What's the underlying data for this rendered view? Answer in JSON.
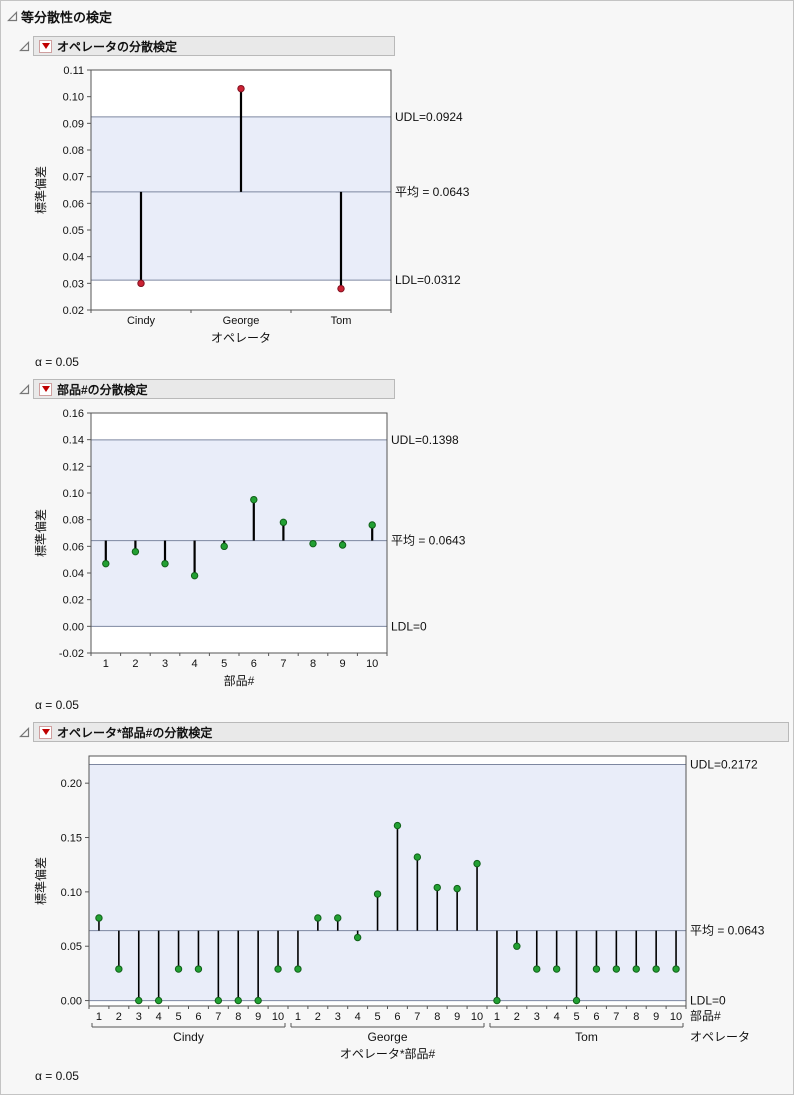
{
  "page": {
    "title": "等分散性の検定"
  },
  "sections": [
    {
      "title": "オペレータの分散検定",
      "alpha": "α = 0.05"
    },
    {
      "title": "部品#の分散検定",
      "alpha": "α = 0.05"
    },
    {
      "title": "オペレータ*部品#の分散検定",
      "alpha": "α = 0.05"
    }
  ],
  "chart_data": [
    {
      "type": "needle",
      "title": "オペレータの分散検定",
      "ylabel": "標準偏差",
      "xlabel": "オペレータ",
      "categories": [
        "Cindy",
        "George",
        "Tom"
      ],
      "values": [
        0.03,
        0.103,
        0.028
      ],
      "mean": 0.0643,
      "udl": 0.0924,
      "ldl": 0.0312,
      "labels": {
        "udl": "UDL=0.0924",
        "mean": "平均 = 0.0643",
        "ldl": "LDL=0.0312"
      },
      "ylim": [
        0.02,
        0.11
      ],
      "ytick_step": 0.01,
      "ydecimals": 2,
      "grid": false,
      "legend": "none",
      "band_color": "#e9edf9",
      "limit_line_color": "#7d87a0",
      "point_color": "#cc2233",
      "point_edge": "#801020"
    },
    {
      "type": "needle",
      "title": "部品#の分散検定",
      "ylabel": "標準偏差",
      "xlabel": "部品#",
      "categories": [
        "1",
        "2",
        "3",
        "4",
        "5",
        "6",
        "7",
        "8",
        "9",
        "10"
      ],
      "values": [
        0.047,
        0.056,
        0.047,
        0.038,
        0.06,
        0.095,
        0.078,
        0.062,
        0.061,
        0.076
      ],
      "mean": 0.0643,
      "udl": 0.1398,
      "ldl": 0,
      "labels": {
        "udl": "UDL=0.1398",
        "mean": "平均 = 0.0643",
        "ldl": "LDL=0"
      },
      "ylim": [
        -0.02,
        0.16
      ],
      "ytick_step": 0.02,
      "ydecimals": 2,
      "grid": false,
      "legend": "none",
      "band_color": "#e9edf9",
      "limit_line_color": "#7d87a0",
      "point_color": "#22a033",
      "point_edge": "#106018"
    },
    {
      "type": "needle",
      "title": "オペレータ*部品#の分散検定",
      "ylabel": "標準偏差",
      "xlabel": "オペレータ*部品#",
      "categories": [
        "1",
        "2",
        "3",
        "4",
        "5",
        "6",
        "7",
        "8",
        "9",
        "10",
        "1",
        "2",
        "3",
        "4",
        "5",
        "6",
        "7",
        "8",
        "9",
        "10",
        "1",
        "2",
        "3",
        "4",
        "5",
        "6",
        "7",
        "8",
        "9",
        "10"
      ],
      "groups": [
        {
          "label": "Cindy",
          "span": 10
        },
        {
          "label": "George",
          "span": 10
        },
        {
          "label": "Tom",
          "span": 10
        }
      ],
      "right_labels": [
        "部品#",
        "オペレータ"
      ],
      "values": [
        0.076,
        0.029,
        0.0,
        0.0,
        0.029,
        0.029,
        0.0,
        0.0,
        0.0,
        0.029,
        0.029,
        0.076,
        0.076,
        0.058,
        0.098,
        0.161,
        0.132,
        0.104,
        0.103,
        0.126,
        0.0,
        0.05,
        0.029,
        0.029,
        0.0,
        0.029,
        0.029,
        0.029,
        0.029,
        0.029
      ],
      "mean": 0.0643,
      "udl": 0.2172,
      "ldl": 0,
      "labels": {
        "udl": "UDL=0.2172",
        "mean": "平均 = 0.0643",
        "ldl": "LDL=0"
      },
      "ylim": [
        -0.005,
        0.225
      ],
      "yticks": [
        0.0,
        0.05,
        0.1,
        0.15,
        0.2
      ],
      "ydecimals": 2,
      "grid": false,
      "legend": "none",
      "band_color": "#e9edf9",
      "limit_line_color": "#7d87a0",
      "point_color": "#22a033",
      "point_edge": "#106018"
    }
  ]
}
